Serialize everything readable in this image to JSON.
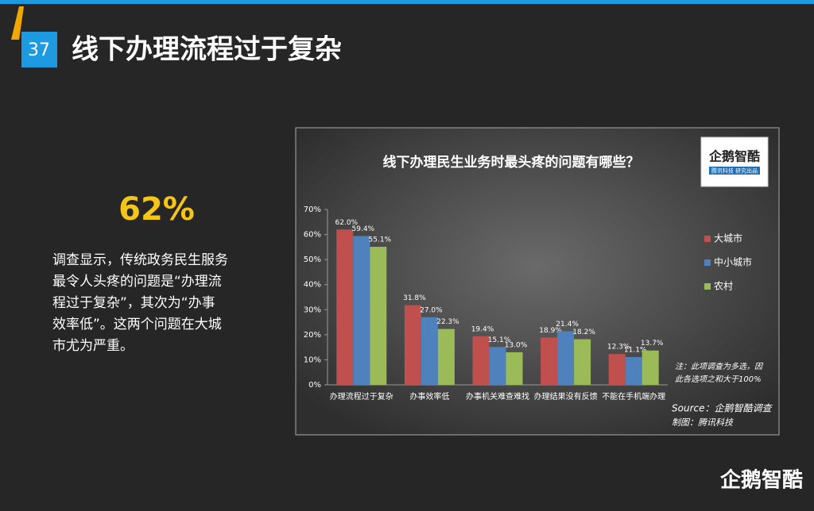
{
  "slide": {
    "page_number": "37",
    "title": "线下办理流程过于复杂",
    "highlight": "62%",
    "paragraph": [
      "调查显示，传统政务民生服务",
      "最令人头疼的问题是“办理流",
      "程过于复杂”，其次为“办事",
      "效率低”。这两个问题在大城",
      "市尤为严重。"
    ],
    "logo": "企鹅智酷",
    "badge_title": "企鹅智酷",
    "badge_subtitle": "腾讯科技 研究出品"
  },
  "chart_data": {
    "type": "bar",
    "title": "线下办理民生业务时最头疼的问题有哪些？",
    "categories": [
      "办理流程过于复杂",
      "办事效率低",
      "办事机关难查难找",
      "办理结果没有反馈",
      "不能在手机端办理"
    ],
    "series": [
      {
        "name": "大城市",
        "color": "#c0504d",
        "values": [
          62.0,
          31.8,
          19.4,
          18.9,
          12.3
        ],
        "value_labels": [
          "62.0%",
          "31.8%",
          "19.4%",
          "18.9%",
          "12.3%"
        ]
      },
      {
        "name": "中小城市",
        "color": "#4f81bd",
        "values": [
          59.4,
          27.0,
          15.1,
          21.4,
          11.1
        ],
        "value_labels": [
          "59.4%",
          "27.0%",
          "15.1%",
          "21.4%",
          "11.1%"
        ]
      },
      {
        "name": "农村",
        "color": "#9bbb59",
        "values": [
          55.1,
          22.3,
          13.0,
          18.2,
          13.7
        ],
        "value_labels": [
          "55.1%",
          "22.3%",
          "13.0%",
          "18.2%",
          "13.7%"
        ]
      }
    ],
    "ylim": [
      0,
      70
    ],
    "yticks": [
      {
        "value": 0,
        "label": "0%"
      },
      {
        "value": 10,
        "label": "10%"
      },
      {
        "value": 20,
        "label": "20%"
      },
      {
        "value": 30,
        "label": "30%"
      },
      {
        "value": 40,
        "label": "40%"
      },
      {
        "value": 50,
        "label": "50%"
      },
      {
        "value": 60,
        "label": "60%"
      },
      {
        "value": 70,
        "label": "70%"
      }
    ],
    "legend": "right",
    "note": [
      "注：此项调查为多选，因",
      "此各选项之和大于100%"
    ],
    "source": "Source：企鹅智酷调查",
    "credit": "制图：腾讯科技"
  }
}
